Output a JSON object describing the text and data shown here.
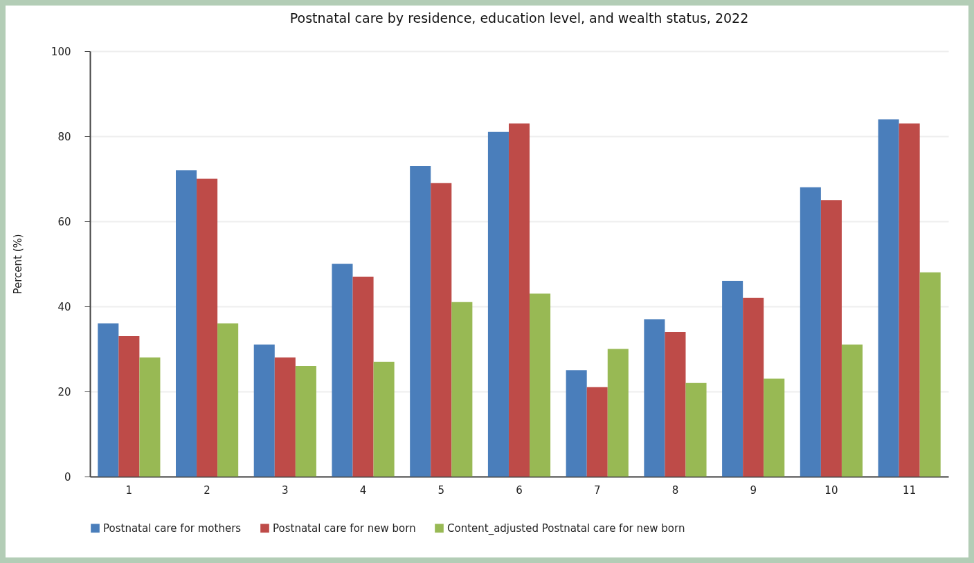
{
  "chart_data": {
    "type": "bar",
    "title": "Postnatal care  by residence, education level, and wealth status, 2022",
    "ylabel": "Percent (%)",
    "categories": [
      "1",
      "2",
      "3",
      "4",
      "5",
      "6",
      "7",
      "8",
      "9",
      "10",
      "11"
    ],
    "series": [
      {
        "name": "Postnatal care for mothers",
        "color": "#4a7ebb",
        "values": [
          36,
          72,
          31,
          50,
          73,
          81,
          25,
          37,
          46,
          68,
          84
        ]
      },
      {
        "name": "Postnatal care for new born",
        "color": "#be4b48",
        "values": [
          33,
          70,
          28,
          47,
          69,
          83,
          21,
          34,
          42,
          65,
          83
        ]
      },
      {
        "name": "Content_adjusted Postnatal care for new born",
        "color": "#98b954",
        "values": [
          28,
          36,
          26,
          27,
          41,
          43,
          30,
          22,
          23,
          31,
          48
        ]
      }
    ],
    "ylim": [
      0,
      100
    ],
    "yticks": [
      0,
      20,
      40,
      60,
      80,
      100
    ],
    "grid": "y",
    "legend": "bottom"
  }
}
